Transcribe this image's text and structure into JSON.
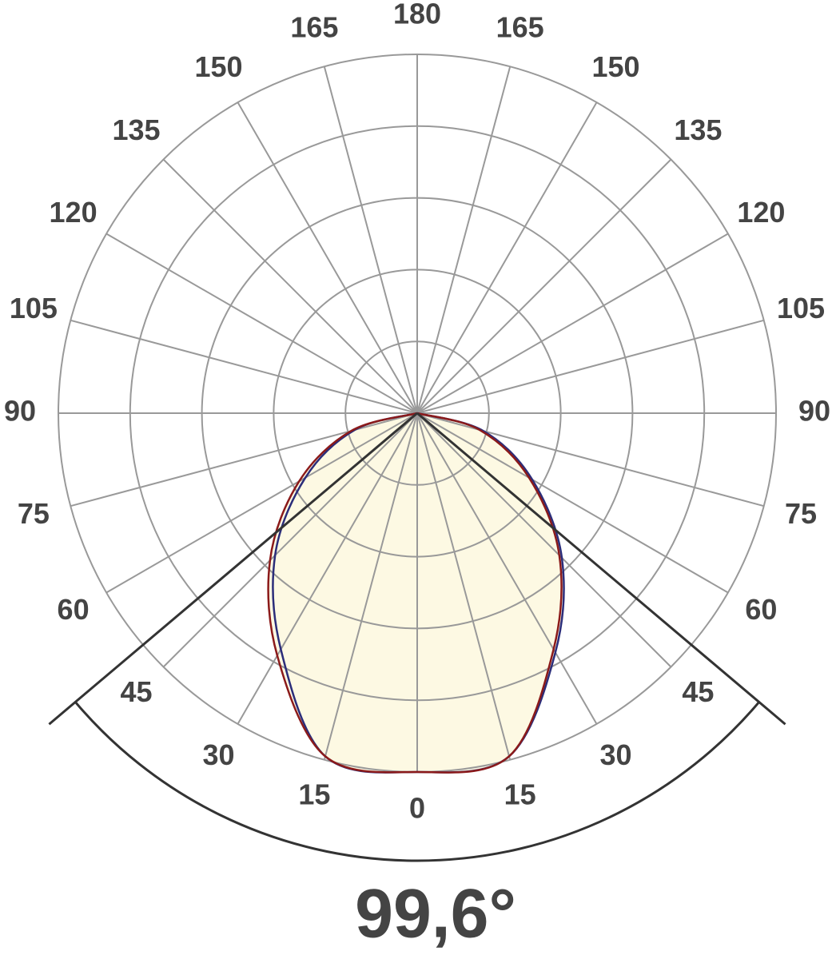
{
  "chart_data": {
    "type": "polar",
    "angles": [
      -90,
      -75,
      -60,
      -45,
      -30,
      -15,
      0,
      15,
      30,
      45,
      60,
      75,
      90
    ],
    "series": [
      {
        "color": "#2b2d7a",
        "values": [
          0,
          18,
          36,
          56,
          76,
          99,
          100,
          99,
          77,
          57,
          37,
          19,
          0
        ]
      },
      {
        "color": "#8b1a1a",
        "values": [
          0,
          19,
          38,
          58,
          78,
          99,
          100,
          99,
          76,
          56,
          36,
          18,
          0
        ]
      }
    ],
    "fill_color": "#fdf9e3",
    "rlim": [
      0,
      100
    ],
    "rticks": [
      20,
      40,
      60,
      80,
      100
    ],
    "angle_ticks": [
      0,
      15,
      30,
      45,
      60,
      75,
      90,
      105,
      120,
      135,
      150,
      165,
      180
    ],
    "beam_angle": 99.6,
    "beam_angle_label": "99,6°"
  }
}
